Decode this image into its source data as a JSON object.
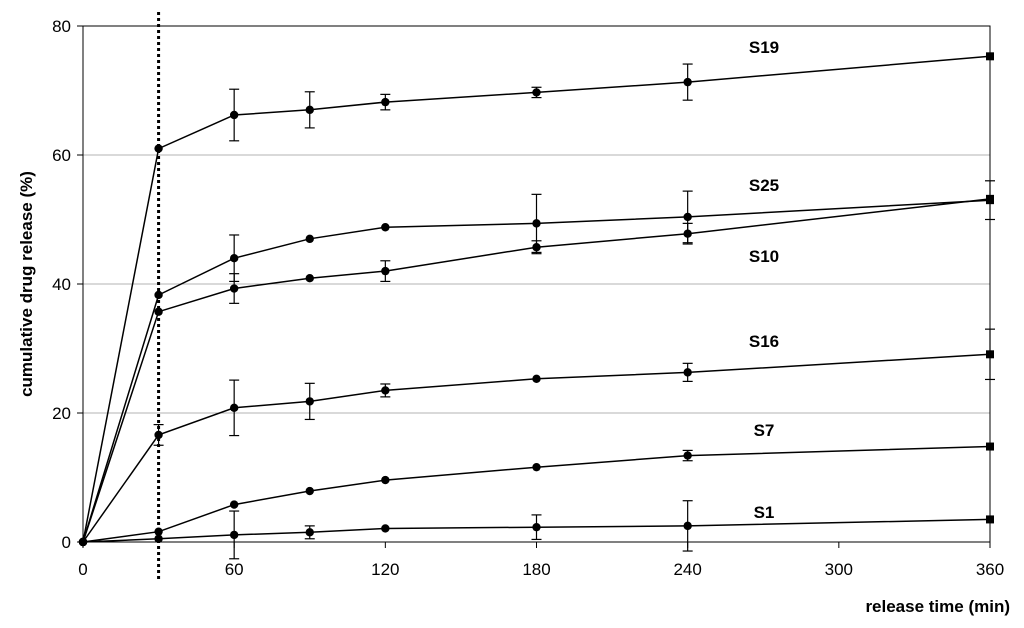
{
  "chart_data": {
    "type": "line",
    "xlabel": "release time (min)",
    "ylabel": "cumulative drug release (%)",
    "xlim": [
      0,
      360
    ],
    "ylim": [
      0,
      80
    ],
    "xticks": [
      0,
      60,
      120,
      180,
      240,
      300,
      360
    ],
    "yticks": [
      0,
      20,
      40,
      60,
      80
    ],
    "grid": "horizontal",
    "reference_line": {
      "x": 30,
      "style": "dotted"
    },
    "series": [
      {
        "name": "S19",
        "x": [
          0,
          30,
          60,
          90,
          120,
          180,
          240,
          360
        ],
        "y": [
          0,
          61.0,
          66.2,
          67.0,
          68.2,
          69.7,
          71.3,
          75.3
        ],
        "err": [
          0,
          0,
          4.0,
          2.8,
          1.2,
          0.8,
          2.8,
          0
        ]
      },
      {
        "name": "S25",
        "x": [
          0,
          30,
          60,
          90,
          120,
          180,
          240,
          360
        ],
        "y": [
          0,
          38.3,
          44.0,
          47.0,
          48.8,
          49.4,
          50.4,
          53.0
        ],
        "err": [
          0,
          0,
          3.6,
          0,
          0,
          4.5,
          4.0,
          3.0
        ]
      },
      {
        "name": "S10",
        "x": [
          0,
          30,
          60,
          90,
          120,
          180,
          240,
          360
        ],
        "y": [
          0,
          35.7,
          39.3,
          40.9,
          42.0,
          45.7,
          47.8,
          53.2
        ],
        "err": [
          0,
          0,
          2.3,
          0,
          1.6,
          1.0,
          1.6,
          0
        ]
      },
      {
        "name": "S16",
        "x": [
          0,
          30,
          60,
          90,
          120,
          180,
          240,
          360
        ],
        "y": [
          0,
          16.6,
          20.8,
          21.8,
          23.5,
          25.3,
          26.3,
          29.1
        ],
        "err": [
          0,
          1.6,
          4.3,
          2.8,
          1.0,
          0,
          1.4,
          3.9
        ]
      },
      {
        "name": "S7",
        "x": [
          0,
          30,
          60,
          90,
          120,
          180,
          240,
          360
        ],
        "y": [
          0,
          1.6,
          5.8,
          7.9,
          9.6,
          11.6,
          13.4,
          14.8
        ],
        "err": [
          0,
          0,
          0,
          0,
          0,
          0,
          0.8,
          0
        ]
      },
      {
        "name": "S1",
        "x": [
          0,
          30,
          60,
          90,
          120,
          180,
          240,
          360
        ],
        "y": [
          0,
          0.5,
          1.1,
          1.5,
          2.1,
          2.3,
          2.5,
          3.5
        ],
        "err": [
          0,
          0,
          3.7,
          1.0,
          0,
          1.9,
          3.9,
          0
        ]
      }
    ]
  }
}
